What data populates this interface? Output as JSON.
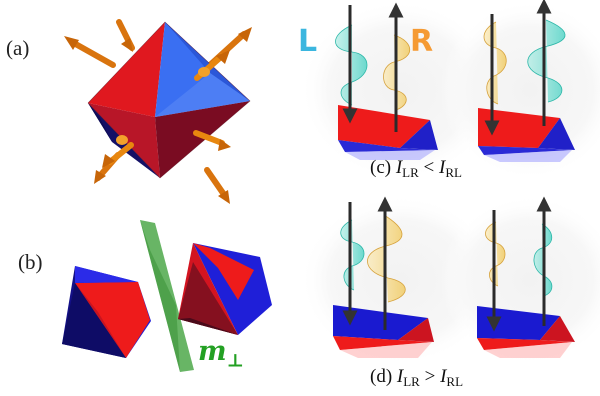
{
  "panels": {
    "a": {
      "label": "(a)"
    },
    "b": {
      "label": "(b)",
      "plane_label_main": "m",
      "plane_label_sub": "⊥"
    },
    "c": {
      "label": "(c)",
      "caption_i1": "I",
      "caption_sub1": "LR",
      "caption_op": "<",
      "caption_i2": "I",
      "caption_sub2": "RL"
    },
    "d": {
      "label": "(d)",
      "caption_i1": "I",
      "caption_sub1": "LR",
      "caption_op": ">",
      "caption_i2": "I",
      "caption_sub2": "RL"
    }
  },
  "waves": {
    "left_label": "L",
    "right_label": "R"
  },
  "colors": {
    "red": "#e8202a",
    "blue": "#2b2be0",
    "dark_blue": "#0f0f63",
    "cyan_wave": "#3ecfc0",
    "yellow_wave": "#f0c85a",
    "arrow_orange": "#e07a10",
    "plane_green": "#3e9a3a",
    "L_text": "#3bb6df",
    "R_text": "#f59a33",
    "m_text": "#23a023"
  }
}
